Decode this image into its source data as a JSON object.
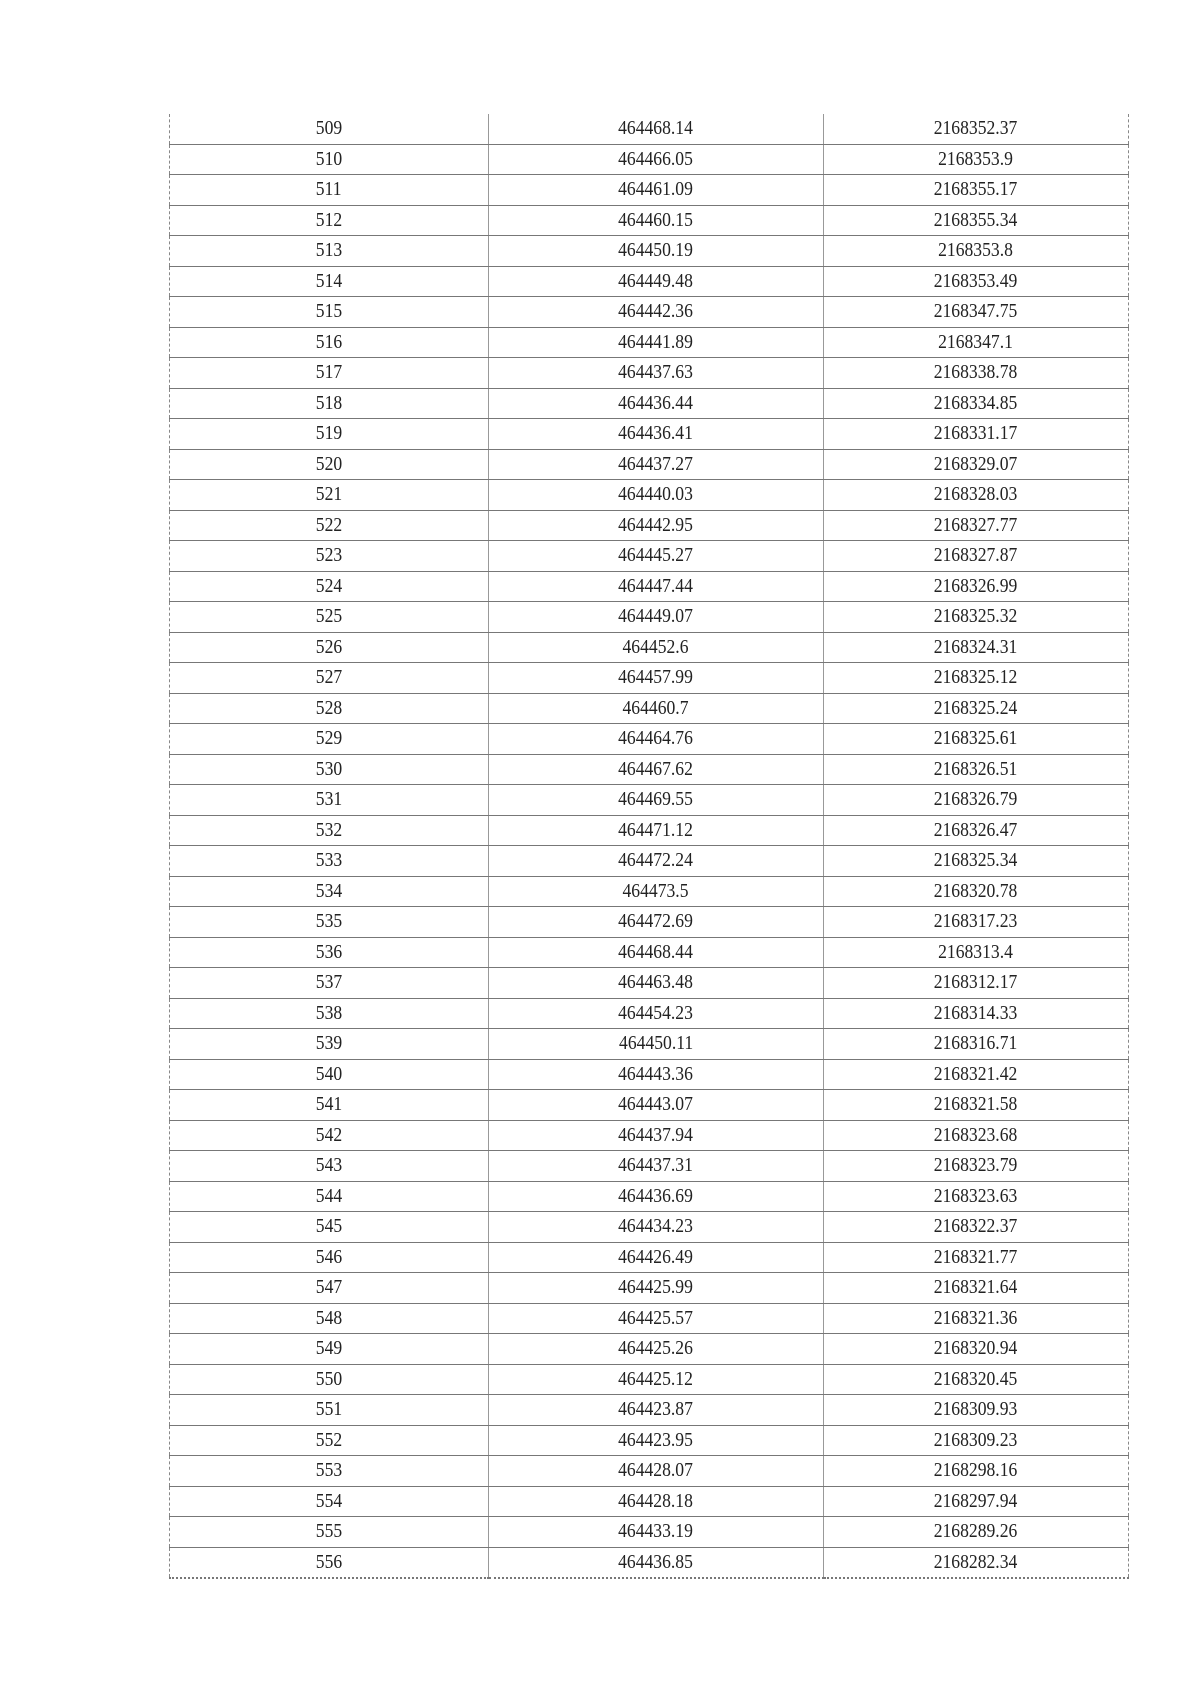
{
  "table": {
    "rows": [
      [
        "509",
        "464468.14",
        "2168352.37"
      ],
      [
        "510",
        "464466.05",
        "2168353.9"
      ],
      [
        "511",
        "464461.09",
        "2168355.17"
      ],
      [
        "512",
        "464460.15",
        "2168355.34"
      ],
      [
        "513",
        "464450.19",
        "2168353.8"
      ],
      [
        "514",
        "464449.48",
        "2168353.49"
      ],
      [
        "515",
        "464442.36",
        "2168347.75"
      ],
      [
        "516",
        "464441.89",
        "2168347.1"
      ],
      [
        "517",
        "464437.63",
        "2168338.78"
      ],
      [
        "518",
        "464436.44",
        "2168334.85"
      ],
      [
        "519",
        "464436.41",
        "2168331.17"
      ],
      [
        "520",
        "464437.27",
        "2168329.07"
      ],
      [
        "521",
        "464440.03",
        "2168328.03"
      ],
      [
        "522",
        "464442.95",
        "2168327.77"
      ],
      [
        "523",
        "464445.27",
        "2168327.87"
      ],
      [
        "524",
        "464447.44",
        "2168326.99"
      ],
      [
        "525",
        "464449.07",
        "2168325.32"
      ],
      [
        "526",
        "464452.6",
        "2168324.31"
      ],
      [
        "527",
        "464457.99",
        "2168325.12"
      ],
      [
        "528",
        "464460.7",
        "2168325.24"
      ],
      [
        "529",
        "464464.76",
        "2168325.61"
      ],
      [
        "530",
        "464467.62",
        "2168326.51"
      ],
      [
        "531",
        "464469.55",
        "2168326.79"
      ],
      [
        "532",
        "464471.12",
        "2168326.47"
      ],
      [
        "533",
        "464472.24",
        "2168325.34"
      ],
      [
        "534",
        "464473.5",
        "2168320.78"
      ],
      [
        "535",
        "464472.69",
        "2168317.23"
      ],
      [
        "536",
        "464468.44",
        "2168313.4"
      ],
      [
        "537",
        "464463.48",
        "2168312.17"
      ],
      [
        "538",
        "464454.23",
        "2168314.33"
      ],
      [
        "539",
        "464450.11",
        "2168316.71"
      ],
      [
        "540",
        "464443.36",
        "2168321.42"
      ],
      [
        "541",
        "464443.07",
        "2168321.58"
      ],
      [
        "542",
        "464437.94",
        "2168323.68"
      ],
      [
        "543",
        "464437.31",
        "2168323.79"
      ],
      [
        "544",
        "464436.69",
        "2168323.63"
      ],
      [
        "545",
        "464434.23",
        "2168322.37"
      ],
      [
        "546",
        "464426.49",
        "2168321.77"
      ],
      [
        "547",
        "464425.99",
        "2168321.64"
      ],
      [
        "548",
        "464425.57",
        "2168321.36"
      ],
      [
        "549",
        "464425.26",
        "2168320.94"
      ],
      [
        "550",
        "464425.12",
        "2168320.45"
      ],
      [
        "551",
        "464423.87",
        "2168309.93"
      ],
      [
        "552",
        "464423.95",
        "2168309.23"
      ],
      [
        "553",
        "464428.07",
        "2168298.16"
      ],
      [
        "554",
        "464428.18",
        "2168297.94"
      ],
      [
        "555",
        "464433.19",
        "2168289.26"
      ],
      [
        "556",
        "464436.85",
        "2168282.34"
      ]
    ]
  }
}
